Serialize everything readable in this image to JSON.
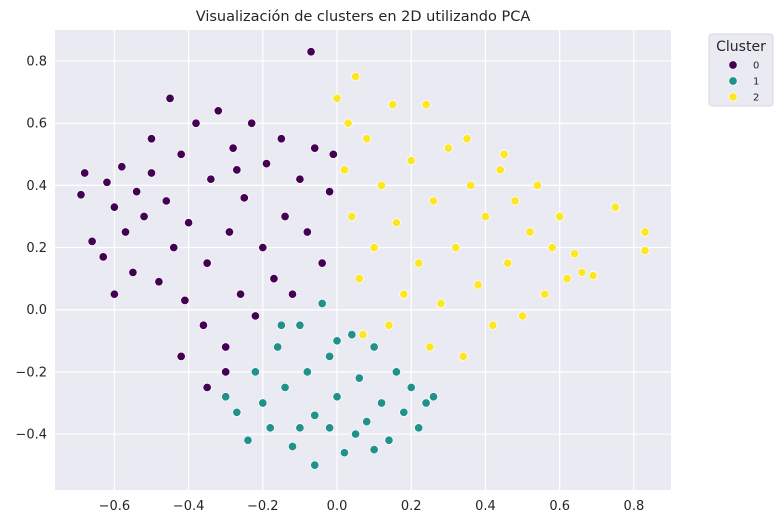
{
  "chart_data": {
    "type": "scatter",
    "title": "Visualización de clusters en 2D utilizando PCA",
    "xlabel": "",
    "ylabel": "",
    "xlim": [
      -0.76,
      0.9
    ],
    "ylim": [
      -0.58,
      0.9
    ],
    "xticks": [
      -0.6,
      -0.4,
      -0.2,
      0.0,
      0.2,
      0.4,
      0.6,
      0.8
    ],
    "xtick_labels": [
      "−0.6",
      "−0.4",
      "−0.2",
      "0.0",
      "0.2",
      "0.4",
      "0.6",
      "0.8"
    ],
    "yticks": [
      -0.4,
      -0.2,
      0.0,
      0.2,
      0.4,
      0.6,
      0.8
    ],
    "ytick_labels": [
      "−0.4",
      "−0.2",
      "0.0",
      "0.2",
      "0.4",
      "0.6",
      "0.8"
    ],
    "grid": true,
    "legend": {
      "title": "Cluster",
      "placement": "outside-top-right"
    },
    "series": [
      {
        "name": "0",
        "color": "#440154",
        "points": [
          [
            -0.69,
            0.37
          ],
          [
            -0.68,
            0.44
          ],
          [
            -0.66,
            0.22
          ],
          [
            -0.63,
            0.17
          ],
          [
            -0.62,
            0.41
          ],
          [
            -0.6,
            0.33
          ],
          [
            -0.58,
            0.46
          ],
          [
            -0.57,
            0.25
          ],
          [
            -0.55,
            0.12
          ],
          [
            -0.54,
            0.38
          ],
          [
            -0.52,
            0.3
          ],
          [
            -0.5,
            0.44
          ],
          [
            -0.48,
            0.09
          ],
          [
            -0.46,
            0.35
          ],
          [
            -0.45,
            0.68
          ],
          [
            -0.44,
            0.2
          ],
          [
            -0.42,
            0.5
          ],
          [
            -0.41,
            0.03
          ],
          [
            -0.4,
            0.28
          ],
          [
            -0.38,
            0.6
          ],
          [
            -0.36,
            -0.05
          ],
          [
            -0.35,
            0.15
          ],
          [
            -0.34,
            0.42
          ],
          [
            -0.32,
            0.64
          ],
          [
            -0.3,
            -0.12
          ],
          [
            -0.29,
            0.25
          ],
          [
            -0.28,
            0.52
          ],
          [
            -0.26,
            0.05
          ],
          [
            -0.25,
            0.36
          ],
          [
            -0.23,
            0.6
          ],
          [
            -0.22,
            -0.02
          ],
          [
            -0.2,
            0.2
          ],
          [
            -0.19,
            0.47
          ],
          [
            -0.17,
            0.1
          ],
          [
            -0.15,
            0.55
          ],
          [
            -0.14,
            0.3
          ],
          [
            -0.12,
            0.05
          ],
          [
            -0.1,
            0.42
          ],
          [
            -0.08,
            0.25
          ],
          [
            -0.06,
            0.52
          ],
          [
            -0.07,
            0.83
          ],
          [
            -0.04,
            0.15
          ],
          [
            -0.02,
            0.38
          ],
          [
            -0.01,
            0.5
          ],
          [
            -0.3,
            -0.2
          ],
          [
            -0.35,
            -0.25
          ],
          [
            -0.42,
            -0.15
          ],
          [
            -0.6,
            0.05
          ],
          [
            -0.5,
            0.55
          ],
          [
            -0.27,
            0.45
          ]
        ]
      },
      {
        "name": "1",
        "color": "#21918c",
        "points": [
          [
            -0.3,
            -0.28
          ],
          [
            -0.27,
            -0.33
          ],
          [
            -0.24,
            -0.42
          ],
          [
            -0.22,
            -0.2
          ],
          [
            -0.2,
            -0.3
          ],
          [
            -0.18,
            -0.38
          ],
          [
            -0.16,
            -0.12
          ],
          [
            -0.14,
            -0.25
          ],
          [
            -0.12,
            -0.44
          ],
          [
            -0.1,
            -0.05
          ],
          [
            -0.08,
            -0.2
          ],
          [
            -0.06,
            -0.34
          ],
          [
            -0.06,
            -0.5
          ],
          [
            -0.04,
            0.02
          ],
          [
            -0.02,
            -0.15
          ],
          [
            0.0,
            -0.28
          ],
          [
            0.02,
            -0.46
          ],
          [
            0.04,
            -0.08
          ],
          [
            0.06,
            -0.22
          ],
          [
            0.08,
            -0.36
          ],
          [
            0.1,
            -0.12
          ],
          [
            0.12,
            -0.3
          ],
          [
            0.14,
            -0.42
          ],
          [
            0.16,
            -0.2
          ],
          [
            0.18,
            -0.33
          ],
          [
            0.2,
            -0.25
          ],
          [
            0.22,
            -0.38
          ],
          [
            0.24,
            -0.3
          ],
          [
            0.26,
            -0.28
          ],
          [
            -0.02,
            -0.38
          ],
          [
            0.05,
            -0.4
          ],
          [
            -0.1,
            -0.38
          ],
          [
            0.1,
            -0.45
          ],
          [
            -0.15,
            -0.05
          ],
          [
            0.0,
            -0.1
          ]
        ]
      },
      {
        "name": "2",
        "color": "#fde725",
        "points": [
          [
            0.0,
            0.68
          ],
          [
            0.02,
            0.45
          ],
          [
            0.04,
            0.3
          ],
          [
            0.05,
            0.75
          ],
          [
            0.06,
            0.1
          ],
          [
            0.08,
            0.55
          ],
          [
            0.1,
            0.2
          ],
          [
            0.12,
            0.4
          ],
          [
            0.14,
            -0.05
          ],
          [
            0.15,
            0.66
          ],
          [
            0.16,
            0.28
          ],
          [
            0.18,
            0.05
          ],
          [
            0.2,
            0.48
          ],
          [
            0.22,
            0.15
          ],
          [
            0.24,
            0.66
          ],
          [
            0.25,
            -0.12
          ],
          [
            0.26,
            0.35
          ],
          [
            0.28,
            0.02
          ],
          [
            0.3,
            0.52
          ],
          [
            0.32,
            0.2
          ],
          [
            0.34,
            -0.15
          ],
          [
            0.36,
            0.4
          ],
          [
            0.38,
            0.08
          ],
          [
            0.4,
            0.3
          ],
          [
            0.42,
            -0.05
          ],
          [
            0.44,
            0.45
          ],
          [
            0.46,
            0.15
          ],
          [
            0.48,
            0.35
          ],
          [
            0.5,
            -0.02
          ],
          [
            0.52,
            0.25
          ],
          [
            0.54,
            0.4
          ],
          [
            0.56,
            0.05
          ],
          [
            0.58,
            0.2
          ],
          [
            0.6,
            0.3
          ],
          [
            0.62,
            0.1
          ],
          [
            0.64,
            0.18
          ],
          [
            0.66,
            0.12
          ],
          [
            0.69,
            0.11
          ],
          [
            0.75,
            0.33
          ],
          [
            0.83,
            0.25
          ],
          [
            0.83,
            0.19
          ],
          [
            0.07,
            -0.08
          ],
          [
            0.03,
            0.6
          ],
          [
            0.35,
            0.55
          ],
          [
            0.45,
            0.5
          ]
        ]
      }
    ]
  }
}
